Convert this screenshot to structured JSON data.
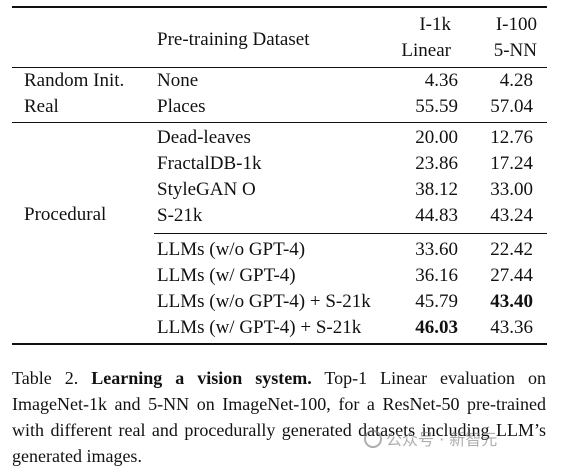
{
  "table": {
    "headers": {
      "dataset": "Pre-training Dataset",
      "col1_line1": "I-1k",
      "col1_line2": "Linear",
      "col2_line1": "I-100",
      "col2_line2": "5-NN"
    },
    "groups": {
      "random_init": "Random Init.",
      "real": "Real",
      "procedural": "Procedural"
    },
    "rows": [
      {
        "dataset": "None",
        "i1k": "4.36",
        "i100": "4.28"
      },
      {
        "dataset": "Places",
        "i1k": "55.59",
        "i100": "57.04"
      },
      {
        "dataset": "Dead-leaves",
        "i1k": "20.00",
        "i100": "12.76"
      },
      {
        "dataset": "FractalDB-1k",
        "i1k": "23.86",
        "i100": "17.24"
      },
      {
        "dataset": "StyleGAN O",
        "i1k": "38.12",
        "i100": "33.00"
      },
      {
        "dataset": "S-21k",
        "i1k": "44.83",
        "i100": "43.24"
      },
      {
        "dataset": "LLMs (w/o GPT-4)",
        "i1k": "33.60",
        "i100": "22.42"
      },
      {
        "dataset": "LLMs (w/ GPT-4)",
        "i1k": "36.16",
        "i100": "27.44"
      },
      {
        "dataset": "LLMs (w/o GPT-4) + S-21k",
        "i1k": "45.79",
        "i100": "43.40"
      },
      {
        "dataset": "LLMs (w/ GPT-4) + S-21k",
        "i1k": "46.03",
        "i100": "43.36"
      }
    ]
  },
  "caption": {
    "label": "Table 2.",
    "title": "Learning a vision system.",
    "body": "Top-1 Linear evaluation on ImageNet-1k and 5-NN on ImageNet-100, for a ResNet-50 pre-trained with different real and procedurally generated datasets including LLM’s generated images."
  },
  "watermark": {
    "text": "公众号 · 新智元"
  }
}
